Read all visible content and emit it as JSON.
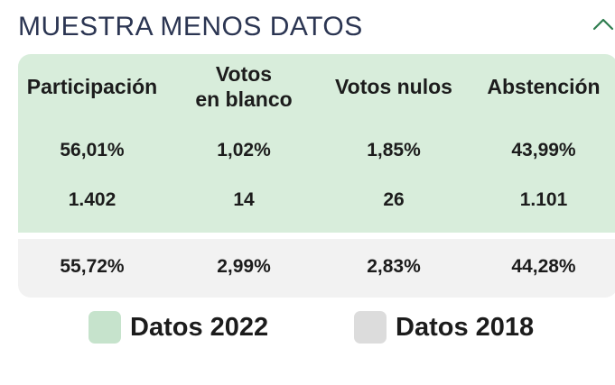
{
  "header": {
    "title": "MUESTRA MENOS DATOS",
    "toggle_icon": "chevron-up-icon",
    "toggle_color": "#2e7d4f"
  },
  "table": {
    "columns": [
      {
        "label_lines": [
          "Participación"
        ]
      },
      {
        "label_lines": [
          "Votos",
          "en blanco"
        ]
      },
      {
        "label_lines": [
          "Votos nulos"
        ]
      },
      {
        "label_lines": [
          "Abstención"
        ]
      }
    ],
    "current_rows": [
      [
        "56,01%",
        "1,02%",
        "1,85%",
        "43,99%"
      ],
      [
        "1.402",
        "14",
        "26",
        "1.101"
      ]
    ],
    "previous_rows": [
      [
        "55,72%",
        "2,99%",
        "2,83%",
        "44,28%"
      ]
    ]
  },
  "legend": {
    "items": [
      {
        "label": "Datos 2022",
        "color": "#c6e3cc"
      },
      {
        "label": "Datos 2018",
        "color": "#dcdcdc"
      }
    ]
  },
  "colors": {
    "current_bg": "#d8eddb",
    "previous_bg": "#f2f2f2",
    "title": "#2b3552"
  }
}
